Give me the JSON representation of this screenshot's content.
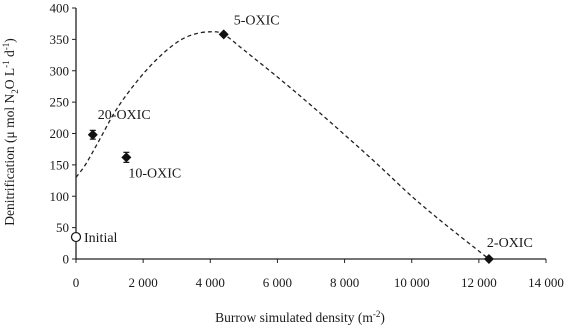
{
  "chart_data": {
    "type": "scatter",
    "title": "",
    "xlabel_main": "Burrow simulated density (m",
    "xlabel_sup": "-2",
    "xlabel_end": ")",
    "ylabel_parts": {
      "p1": "Denitrification (μ mol N",
      "sub2": "2",
      "p2": "O L",
      "sup1": "-1",
      "p3": " d",
      "sup2": "-1",
      "p4": ")"
    },
    "xlim": [
      0,
      14000
    ],
    "ylim": [
      0,
      400
    ],
    "x_ticks": [
      0,
      2000,
      4000,
      6000,
      8000,
      10000,
      12000,
      14000
    ],
    "x_tick_labels": [
      "0",
      "2 000",
      "4 000",
      "6 000",
      "8 000",
      "10 000",
      "12 000",
      "14 000"
    ],
    "y_ticks": [
      0,
      50,
      100,
      150,
      200,
      250,
      300,
      350,
      400
    ],
    "y_tick_labels": [
      "0",
      "50",
      "100",
      "150",
      "200",
      "250",
      "300",
      "350",
      "400"
    ],
    "points": [
      {
        "label": "Initial",
        "x": 0,
        "y": 35,
        "err": 0,
        "marker": "circle-open",
        "label_pos": "right"
      },
      {
        "label": "20-OXIC",
        "x": 500,
        "y": 198,
        "err": 7,
        "marker": "diamond",
        "label_pos": "upper-right"
      },
      {
        "label": "10-OXIC",
        "x": 1500,
        "y": 162,
        "err": 8,
        "marker": "diamond",
        "label_pos": "lower-right"
      },
      {
        "label": "5-OXIC",
        "x": 4400,
        "y": 358,
        "err": 0,
        "marker": "diamond",
        "label_pos": "upper-right"
      },
      {
        "label": "2-OXIC",
        "x": 12300,
        "y": 0,
        "err": 0,
        "marker": "diamond",
        "label_pos": "upper-right"
      }
    ],
    "fit_curve": {
      "style": "dashed",
      "x": [
        0,
        300,
        700,
        1200,
        1800,
        2400,
        3000,
        3500,
        4000,
        4400,
        5000,
        6000,
        7000,
        8000,
        9000,
        10000,
        11000,
        12300
      ],
      "y": [
        130,
        152,
        190,
        238,
        282,
        318,
        345,
        358,
        362,
        358,
        333,
        290,
        245,
        198,
        150,
        100,
        55,
        0
      ]
    },
    "grid": false,
    "legend": "none"
  }
}
